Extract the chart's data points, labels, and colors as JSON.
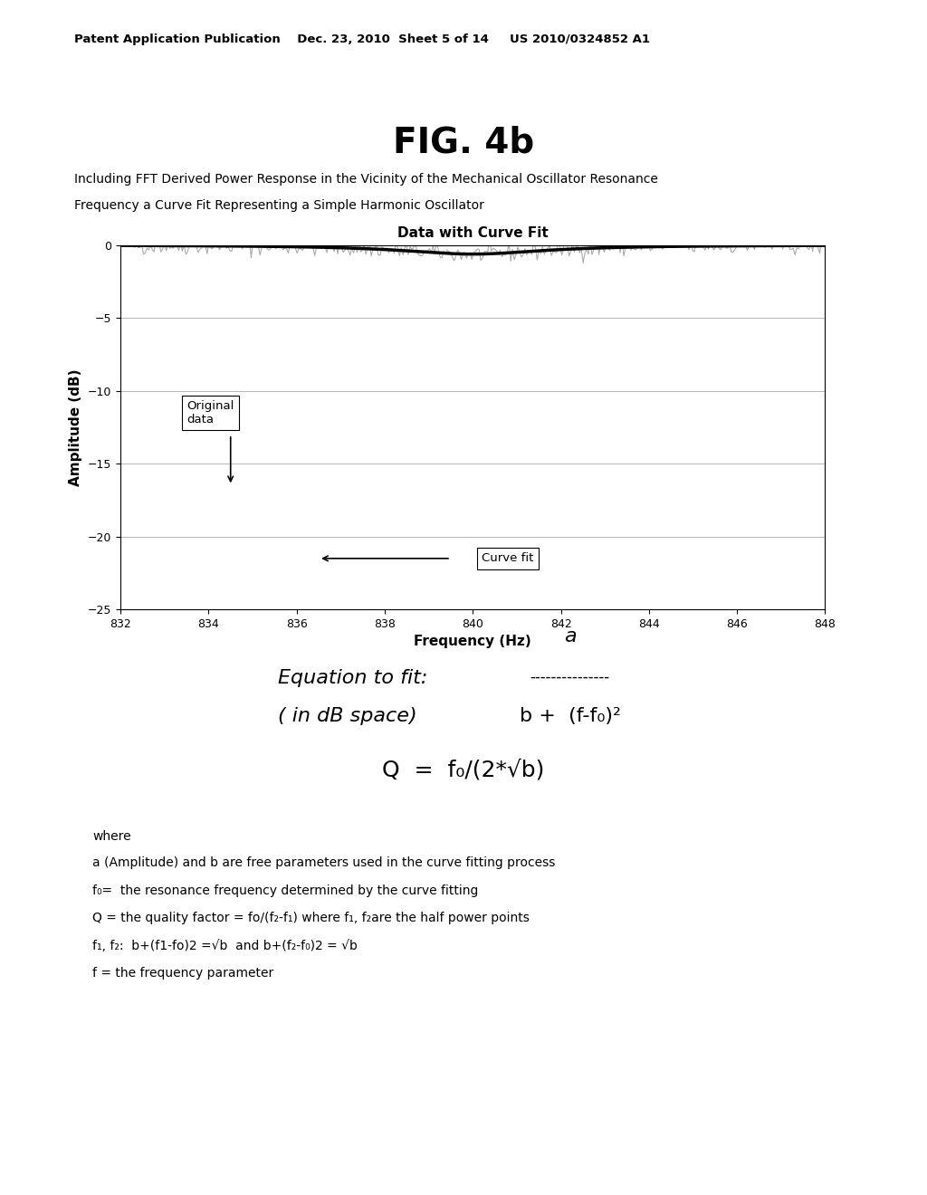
{
  "page_header": "Patent Application Publication    Dec. 23, 2010  Sheet 5 of 14     US 2010/0324852 A1",
  "fig_title": "FIG. 4b",
  "subtitle_line1": "Including FFT Derived Power Response in the Vicinity of the Mechanical Oscillator Resonance",
  "subtitle_line2": "Frequency a Curve Fit Representing a Simple Harmonic Oscillator",
  "chart_title": "Data with Curve Fit",
  "xlabel": "Frequency (Hz)",
  "ylabel": "Amplitude (dB)",
  "xlim": [
    832,
    848
  ],
  "ylim": [
    -25,
    0
  ],
  "xticks": [
    832,
    834,
    836,
    838,
    840,
    842,
    844,
    846,
    848
  ],
  "yticks": [
    0,
    -5,
    -10,
    -15,
    -20,
    -25
  ],
  "f0": 840.0,
  "noise_amplitude": 1.5,
  "curve_fit_a": -2.5,
  "curve_fit_b": 4.0,
  "bg_color": "#ffffff",
  "text_color": "#000000",
  "curve_fit_color": "#000000",
  "original_data_color": "#888888",
  "equation_text1": "Equation to fit:",
  "equation_text2": "( in dB space)",
  "eq_label_a": "a",
  "eq_dashes": "---------------",
  "eq_denominator": "b +  (f-f₀)²",
  "q_equation": "Q  =  f₀/(2*√b)",
  "where_text": "where",
  "desc1": "a (Amplitude) and b are free parameters used in the curve fitting process",
  "desc2": "f₀=  the resonance frequency determined by the curve fitting",
  "desc3": "Q = the quality factor = fo/(f₂-f₁) where f₁, f₂are the half power points",
  "desc4": "f₁, f₂:  b+(f1-fo)2 =√b  and b+(f₂-f₀)2 = √b",
  "desc5": "f = the frequency parameter"
}
